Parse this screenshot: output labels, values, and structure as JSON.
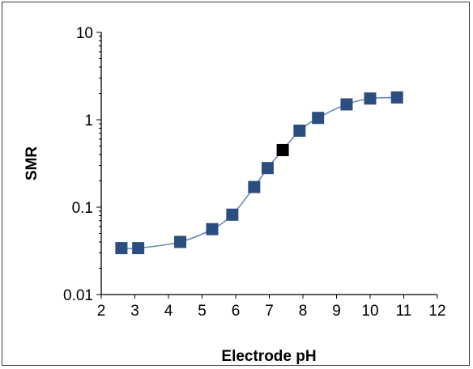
{
  "chart_data": {
    "type": "scatter",
    "title": "",
    "xlabel": "Electrode pH",
    "ylabel": "SMR",
    "xlim": [
      2,
      12
    ],
    "ylim": [
      0.01,
      10
    ],
    "yscale": "log",
    "grid": false,
    "legend": "none",
    "x_ticks": [
      "2",
      "3",
      "4",
      "5",
      "6",
      "7",
      "8",
      "9",
      "10",
      "11",
      "12"
    ],
    "y_ticks": [
      "0.01",
      "0.1",
      "1",
      "10"
    ],
    "series": [
      {
        "points": [
          {
            "x": 2.6,
            "y": 0.034
          },
          {
            "x": 3.1,
            "y": 0.034
          },
          {
            "x": 4.35,
            "y": 0.04
          },
          {
            "x": 5.3,
            "y": 0.056
          },
          {
            "x": 5.9,
            "y": 0.082
          },
          {
            "x": 6.55,
            "y": 0.17
          },
          {
            "x": 6.95,
            "y": 0.28
          },
          {
            "x": 7.4,
            "y": 0.45,
            "highlight": true
          },
          {
            "x": 7.9,
            "y": 0.75
          },
          {
            "x": 8.45,
            "y": 1.05
          },
          {
            "x": 9.3,
            "y": 1.5
          },
          {
            "x": 10.0,
            "y": 1.75
          },
          {
            "x": 10.8,
            "y": 1.8
          }
        ],
        "color": "#2b4e80",
        "highlight_color": "#000000",
        "line_color": "#6a8ab0"
      }
    ]
  }
}
